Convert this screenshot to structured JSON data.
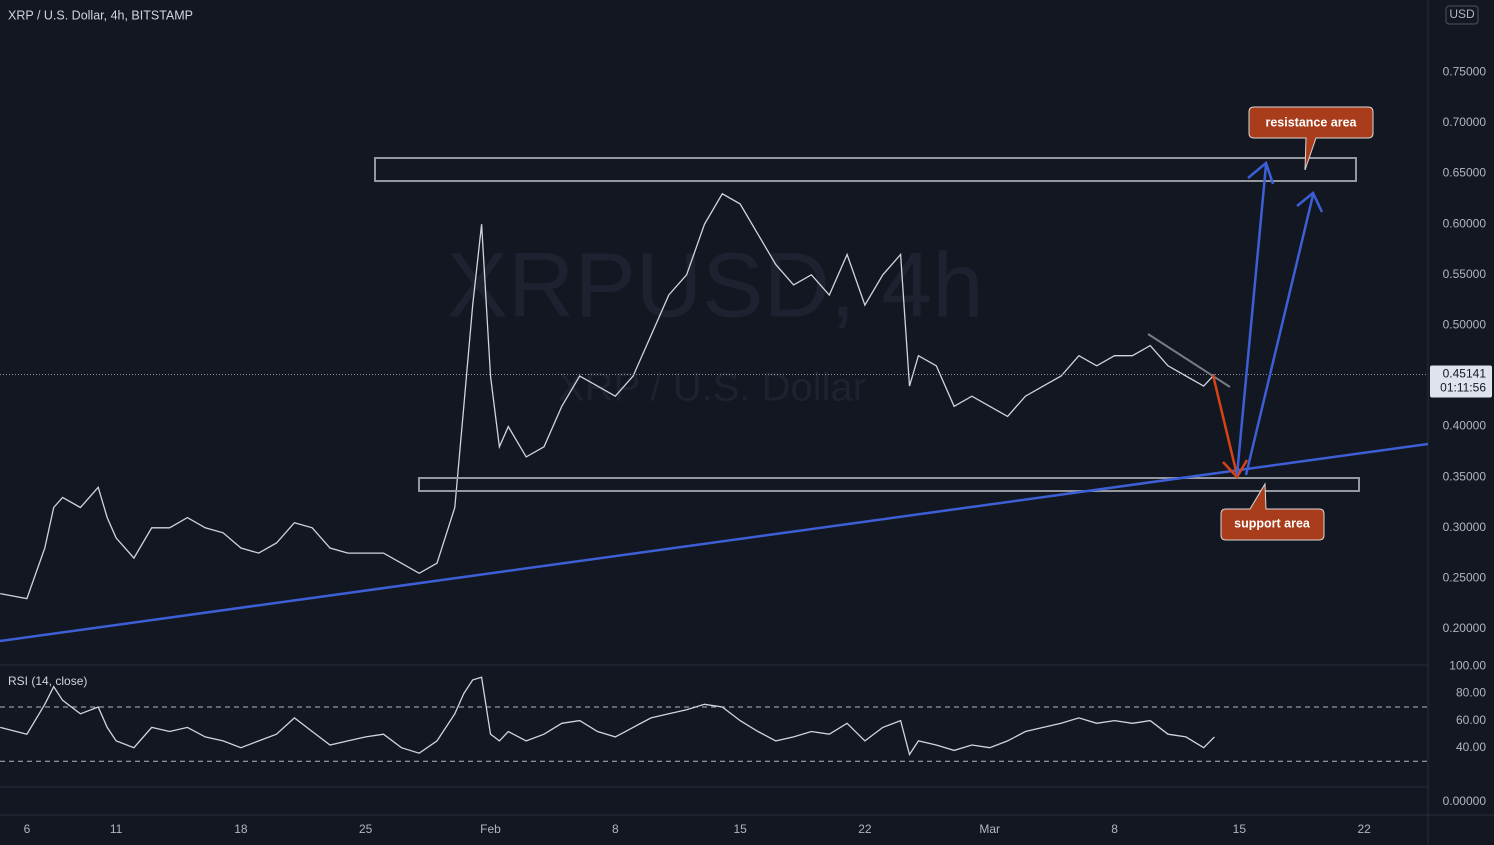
{
  "header": {
    "title": "XRP / U.S. Dollar, 4h, BITSTAMP",
    "currency": "USD",
    "watermark": "XRPUSD, 4h",
    "watermark_sub": "XRP / U.S. Dollar"
  },
  "annotations": {
    "resistance": "resistance area",
    "support": "support area"
  },
  "chart_data": [
    {
      "type": "line",
      "color": "#d1d4dc",
      "x": [
        4.5,
        6,
        7,
        7.5,
        8,
        9,
        10,
        10.5,
        11,
        12,
        13,
        14,
        15,
        16,
        17,
        18,
        19,
        20,
        21,
        22,
        23,
        24,
        25,
        26,
        27,
        28,
        29,
        30,
        30.5,
        31,
        31.5,
        32,
        32.5,
        33,
        34,
        35,
        36,
        37,
        38,
        39,
        40,
        41,
        42,
        43,
        44,
        45,
        46,
        47,
        48,
        49,
        50,
        51,
        52,
        53,
        54,
        55,
        55.5,
        56,
        57,
        58,
        59,
        60,
        61,
        62,
        63,
        64,
        65,
        66,
        67,
        68,
        69,
        70,
        71,
        72,
        72.6
      ],
      "values": [
        0.235,
        0.23,
        0.28,
        0.32,
        0.33,
        0.32,
        0.34,
        0.31,
        0.29,
        0.27,
        0.3,
        0.3,
        0.31,
        0.3,
        0.295,
        0.28,
        0.275,
        0.285,
        0.305,
        0.3,
        0.28,
        0.275,
        0.275,
        0.275,
        0.265,
        0.255,
        0.265,
        0.32,
        0.42,
        0.52,
        0.6,
        0.45,
        0.38,
        0.4,
        0.37,
        0.38,
        0.42,
        0.45,
        0.44,
        0.43,
        0.45,
        0.49,
        0.53,
        0.55,
        0.6,
        0.63,
        0.62,
        0.59,
        0.56,
        0.54,
        0.55,
        0.53,
        0.57,
        0.52,
        0.55,
        0.57,
        0.44,
        0.47,
        0.46,
        0.42,
        0.43,
        0.42,
        0.41,
        0.43,
        0.44,
        0.45,
        0.47,
        0.46,
        0.47,
        0.47,
        0.48,
        0.46,
        0.45,
        0.44,
        0.45141
      ],
      "xlim": [
        4.49,
        84.58
      ],
      "ylim": [
        0.1644,
        0.8215
      ],
      "yticks": [
        {
          "value": 0.2,
          "label": "0.20000"
        },
        {
          "value": 0.25,
          "label": "0.25000"
        },
        {
          "value": 0.3,
          "label": "0.30000"
        },
        {
          "value": 0.35,
          "label": "0.35000"
        },
        {
          "value": 0.4,
          "label": "0.40000"
        },
        {
          "value": 0.45,
          "label": "0.45000"
        },
        {
          "value": 0.5,
          "label": "0.50000"
        },
        {
          "value": 0.55,
          "label": "0.55000"
        },
        {
          "value": 0.6,
          "label": "0.60000"
        },
        {
          "value": 0.65,
          "label": "0.65000"
        },
        {
          "value": 0.7,
          "label": "0.70000"
        },
        {
          "value": 0.75,
          "label": "0.75000"
        }
      ],
      "last_value": 0.45141,
      "countdown": "01:11:56",
      "grid": false
    },
    {
      "type": "line",
      "title": "RSI (14, close)",
      "color": "#d1d4dc",
      "x": [
        4.5,
        6,
        7,
        7.5,
        8,
        9,
        10,
        10.5,
        11,
        12,
        13,
        14,
        15,
        16,
        17,
        18,
        19,
        20,
        21,
        22,
        23,
        24,
        25,
        26,
        27,
        28,
        29,
        30,
        30.5,
        31,
        31.5,
        32,
        32.5,
        33,
        34,
        35,
        36,
        37,
        38,
        39,
        40,
        41,
        42,
        43,
        44,
        45,
        46,
        47,
        48,
        49,
        50,
        51,
        52,
        53,
        54,
        55,
        55.5,
        56,
        57,
        58,
        59,
        60,
        61,
        62,
        63,
        64,
        65,
        66,
        67,
        68,
        69,
        70,
        71,
        72,
        72.6
      ],
      "values": [
        55,
        50,
        72,
        85,
        75,
        65,
        70,
        55,
        45,
        40,
        55,
        52,
        55,
        48,
        45,
        40,
        45,
        50,
        62,
        52,
        42,
        45,
        48,
        50,
        40,
        36,
        45,
        65,
        80,
        90,
        92,
        50,
        45,
        52,
        45,
        50,
        58,
        60,
        52,
        48,
        55,
        62,
        65,
        68,
        72,
        70,
        60,
        52,
        45,
        48,
        52,
        50,
        58,
        45,
        55,
        60,
        35,
        45,
        42,
        38,
        42,
        40,
        45,
        52,
        55,
        58,
        62,
        58,
        60,
        58,
        60,
        50,
        48,
        40,
        48
      ],
      "xlim": [
        4.49,
        84.58
      ],
      "ylim": [
        -9.6,
        101
      ],
      "yticks": [
        {
          "value": 0,
          "label": "0.00000"
        },
        {
          "value": 40,
          "label": "40.00"
        },
        {
          "value": 60,
          "label": "60.00"
        },
        {
          "value": 80,
          "label": "80.00"
        },
        {
          "value": 100,
          "label": "100.00"
        }
      ],
      "xticks": [
        6,
        11,
        18,
        25,
        {
          "value": 32,
          "label": "Feb"
        },
        {
          "value": 39,
          "label": "8"
        },
        {
          "value": 46,
          "label": "15"
        },
        {
          "value": 53,
          "label": "22"
        },
        {
          "value": 60,
          "label": "Mar"
        },
        {
          "value": 67,
          "label": "8"
        },
        {
          "value": 74,
          "label": "15"
        },
        {
          "value": 81,
          "label": "22"
        }
      ],
      "bands": [
        70,
        30
      ],
      "grid": false
    }
  ]
}
